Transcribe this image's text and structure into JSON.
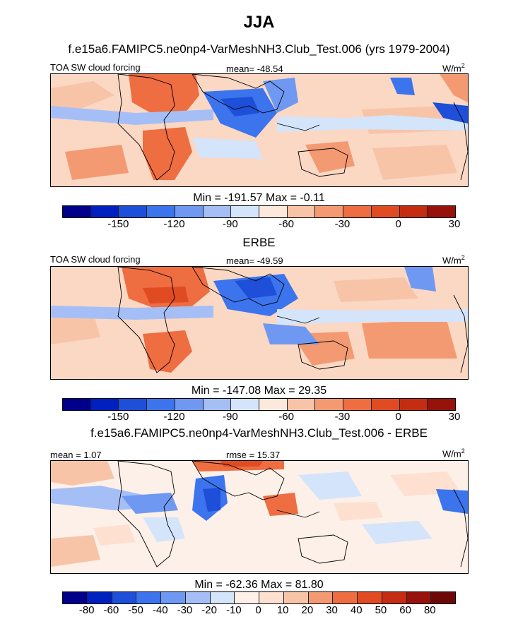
{
  "figure_title": "JJA",
  "panels": [
    {
      "title": "f.e15a6.FAMIPC5.ne0np4-VarMeshNH3.Club_Test.006 (yrs 1979-2004)",
      "left_label": "TOA SW cloud forcing",
      "center_label": "mean= -48.54",
      "units": "W/m",
      "units_sup": "2",
      "minmax": "Min = -191.57 Max =  -0.11",
      "colorbar_ticks": [
        "-150",
        "-120",
        "-90",
        "-60",
        "-30",
        "0",
        "30"
      ]
    },
    {
      "title": "ERBE",
      "left_label": "TOA SW cloud forcing",
      "center_label": "mean= -49.59",
      "units": "W/m",
      "units_sup": "2",
      "minmax": "Min = -147.08 Max =  29.35",
      "colorbar_ticks": [
        "-150",
        "-120",
        "-90",
        "-60",
        "-30",
        "0",
        "30"
      ]
    },
    {
      "title": "f.e15a6.FAMIPC5.ne0np4-VarMeshNH3.Club_Test.006 - ERBE",
      "left_label": "mean =   1.07",
      "center_label": "rmse =  15.37",
      "units": "W/m",
      "units_sup": "2",
      "minmax": "Min = -62.36 Max =  81.80",
      "colorbar_ticks": [
        "-80",
        "-60",
        "-50",
        "-40",
        "-30",
        "-20",
        "-10",
        "0",
        "10",
        "20",
        "30",
        "40",
        "50",
        "60",
        "80"
      ]
    }
  ],
  "colors": {
    "bias_scale": [
      "#00008b",
      "#0020c0",
      "#1e4fd8",
      "#3c74ee",
      "#6f98f2",
      "#a5bff6",
      "#d4e4fb",
      "#fde9dc",
      "#f8c4a8",
      "#f49a73",
      "#ee6d41",
      "#e14b22",
      "#c42d12",
      "#97120a"
    ],
    "diff_scale": [
      "#00008b",
      "#0020c0",
      "#1e4fd8",
      "#3c74ee",
      "#6f98f2",
      "#a5bff6",
      "#d4e4fb",
      "#fdf0e8",
      "#fde0cf",
      "#f8c4a8",
      "#f49a73",
      "#ee6d41",
      "#e14b22",
      "#c42d12",
      "#97120a",
      "#6e0808"
    ]
  },
  "chart_data": [
    {
      "type": "heatmap",
      "title": "f.e15a6.FAMIPC5.ne0np4-VarMeshNH3.Club_Test.006 (yrs 1979-2004)",
      "variable": "TOA SW cloud forcing",
      "units": "W/m2",
      "mean": -48.54,
      "min": -191.57,
      "max": -0.11,
      "contour_levels": [
        -165,
        -150,
        -135,
        -120,
        -105,
        -90,
        -75,
        -60,
        -45,
        -30,
        -15,
        0,
        15,
        30,
        45
      ]
    },
    {
      "type": "heatmap",
      "title": "ERBE",
      "variable": "TOA SW cloud forcing",
      "units": "W/m2",
      "mean": -49.59,
      "min": -147.08,
      "max": 29.35,
      "contour_levels": [
        -165,
        -150,
        -135,
        -120,
        -105,
        -90,
        -75,
        -60,
        -45,
        -30,
        -15,
        0,
        15,
        30,
        45
      ]
    },
    {
      "type": "heatmap",
      "title": "f.e15a6.FAMIPC5.ne0np4-VarMeshNH3.Club_Test.006 - ERBE",
      "variable": "difference",
      "units": "W/m2",
      "mean": 1.07,
      "rmse": 15.37,
      "min": -62.36,
      "max": 81.8,
      "contour_levels": [
        -80,
        -60,
        -50,
        -40,
        -30,
        -20,
        -10,
        0,
        10,
        20,
        30,
        40,
        50,
        60,
        80
      ]
    }
  ]
}
